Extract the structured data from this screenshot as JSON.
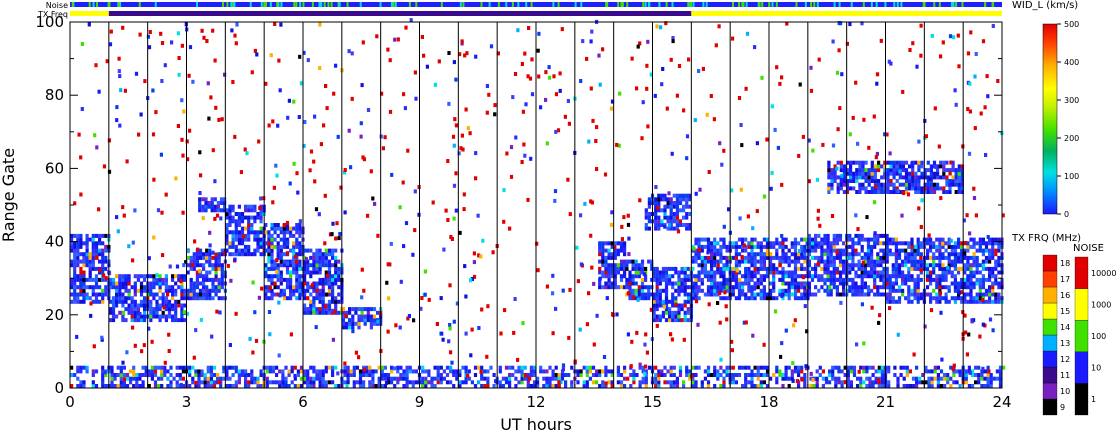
{
  "chart_data": {
    "type": "heatmap",
    "title": "",
    "xlabel": "UT hours",
    "ylabel": "Range Gate",
    "xlim": [
      0,
      24
    ],
    "ylim": [
      0,
      100
    ],
    "x_ticks": [
      "0",
      "3",
      "6",
      "9",
      "12",
      "15",
      "18",
      "21",
      "24"
    ],
    "y_ticks": [
      "0",
      "20",
      "40",
      "60",
      "80",
      "100"
    ],
    "hour_lines": [
      1,
      2,
      3,
      4,
      5,
      6,
      7,
      8,
      9,
      10,
      11,
      12,
      13,
      14,
      15,
      16,
      17,
      18,
      19,
      20,
      21,
      22,
      23
    ],
    "status_bars": {
      "noise_label": "Noise",
      "txfreq_label": "TX Freq",
      "txfreq_segments": [
        {
          "start": 0,
          "end": 1,
          "color": "#ffff00"
        },
        {
          "start": 1,
          "end": 16,
          "color": "#3a0a8c"
        },
        {
          "start": 16,
          "end": 24,
          "color": "#ffff00"
        }
      ]
    },
    "echo_bands": [
      {
        "t0": 0.0,
        "t1": 1.0,
        "g0": 23,
        "g1": 42
      },
      {
        "t0": 1.0,
        "t1": 3.0,
        "g0": 18,
        "g1": 31
      },
      {
        "t0": 3.0,
        "t1": 4.0,
        "g0": 24,
        "g1": 38
      },
      {
        "t0": 4.0,
        "t1": 5.0,
        "g0": 36,
        "g1": 50
      },
      {
        "t0": 5.0,
        "t1": 6.0,
        "g0": 24,
        "g1": 45
      },
      {
        "t0": 6.0,
        "t1": 7.0,
        "g0": 20,
        "g1": 38
      },
      {
        "t0": 7.0,
        "t1": 8.0,
        "g0": 16,
        "g1": 22
      },
      {
        "t0": 13.6,
        "t1": 14.3,
        "g0": 27,
        "g1": 40
      },
      {
        "t0": 14.3,
        "t1": 15.0,
        "g0": 24,
        "g1": 35
      },
      {
        "t0": 15.0,
        "t1": 16.0,
        "g0": 18,
        "g1": 33
      },
      {
        "t0": 16.0,
        "t1": 19.0,
        "g0": 24,
        "g1": 41
      },
      {
        "t0": 19.0,
        "t1": 21.0,
        "g0": 25,
        "g1": 42
      },
      {
        "t0": 21.0,
        "t1": 24.0,
        "g0": 23,
        "g1": 41
      },
      {
        "t0": 3.3,
        "t1": 4.0,
        "g0": 48,
        "g1": 52
      },
      {
        "t0": 14.8,
        "t1": 16.0,
        "g0": 43,
        "g1": 53
      },
      {
        "t0": 19.5,
        "t1": 23.0,
        "g0": 53,
        "g1": 62
      },
      {
        "t0": 0.0,
        "t1": 24.0,
        "g0": 0,
        "g1": 6
      }
    ],
    "width_colorbar": {
      "title": "WID_L (km/s)",
      "min": 0,
      "max": 500,
      "ticks": [
        "0",
        "100",
        "200",
        "300",
        "400",
        "500"
      ]
    },
    "freq_colorbar": {
      "title": "TX FRQ (MHz)",
      "ticks": [
        "9",
        "10",
        "11",
        "12",
        "13",
        "14",
        "15",
        "16",
        "17",
        "18"
      ]
    },
    "noise_colorbar": {
      "title": "NOISE",
      "ticks": [
        "1",
        "10",
        "100",
        "1000",
        "10000"
      ]
    }
  }
}
